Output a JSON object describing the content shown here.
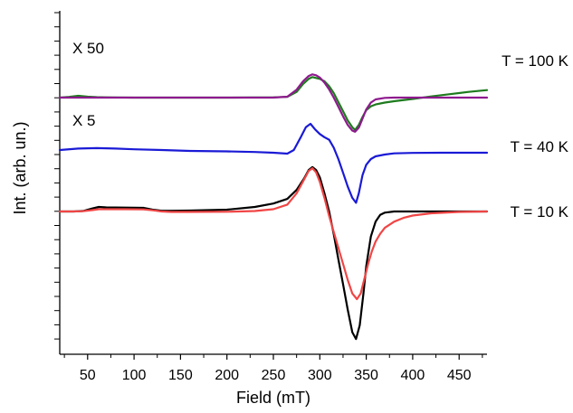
{
  "chart_data": {
    "type": "line",
    "xlabel": "Field (mT)",
    "ylabel": "Int. (arb. un.)",
    "xlim": [
      20,
      480
    ],
    "xticks": [
      50,
      100,
      150,
      200,
      250,
      300,
      350,
      400,
      450
    ],
    "y_tick_labels": "none",
    "grid": false,
    "legend": "none",
    "annotations": {
      "t100": "T = 100 K",
      "t40": "T = 40 K",
      "t10": "T = 10 K",
      "x50": "X 50",
      "x5": "X 5"
    },
    "series": [
      {
        "color": "#1e7b1e",
        "group": "T = 100 K",
        "x": [
          20,
          30,
          40,
          50,
          60,
          70,
          100,
          150,
          200,
          250,
          265,
          275,
          282,
          288,
          292,
          296,
          300,
          305,
          310,
          315,
          320,
          325,
          330,
          335,
          338,
          342,
          346,
          350,
          355,
          360,
          370,
          380,
          400,
          420,
          440,
          460,
          480
        ],
        "y": [
          0.0,
          0.03,
          0.08,
          0.04,
          0.02,
          0.01,
          0.0,
          0.0,
          0.0,
          0.01,
          0.03,
          0.25,
          0.6,
          0.82,
          0.9,
          0.86,
          0.82,
          0.72,
          0.5,
          0.2,
          -0.2,
          -0.6,
          -1.0,
          -1.3,
          -1.42,
          -1.2,
          -0.85,
          -0.55,
          -0.38,
          -0.3,
          -0.22,
          -0.16,
          -0.06,
          0.05,
          0.15,
          0.25,
          0.33
        ]
      },
      {
        "color": "#8e1a8e",
        "group": "T = 100 K",
        "x": [
          20,
          100,
          200,
          250,
          265,
          275,
          282,
          288,
          292,
          296,
          300,
          305,
          310,
          315,
          320,
          325,
          330,
          335,
          338,
          342,
          346,
          350,
          355,
          360,
          370,
          380,
          400,
          450,
          480
        ],
        "y": [
          0.0,
          0.0,
          0.0,
          0.0,
          0.04,
          0.35,
          0.72,
          0.95,
          1.02,
          0.98,
          0.88,
          0.66,
          0.36,
          0.0,
          -0.4,
          -0.82,
          -1.2,
          -1.45,
          -1.5,
          -1.32,
          -0.92,
          -0.52,
          -0.22,
          -0.08,
          -0.01,
          0.0,
          0.0,
          0.0,
          0.0
        ]
      },
      {
        "color": "#1a1ad6",
        "group": "T = 40 K",
        "x": [
          20,
          40,
          60,
          80,
          100,
          130,
          160,
          200,
          230,
          250,
          265,
          272,
          280,
          285,
          290,
          295,
          300,
          305,
          310,
          315,
          320,
          325,
          330,
          335,
          339,
          342,
          346,
          350,
          355,
          360,
          370,
          380,
          400,
          430,
          460,
          480
        ],
        "y": [
          0.1,
          0.16,
          0.18,
          0.16,
          0.13,
          0.1,
          0.06,
          0.04,
          0.01,
          -0.02,
          -0.06,
          0.1,
          0.7,
          1.1,
          1.25,
          1.0,
          0.8,
          0.66,
          0.55,
          0.2,
          -0.3,
          -0.9,
          -1.5,
          -2.0,
          -2.22,
          -1.8,
          -1.0,
          -0.55,
          -0.3,
          -0.18,
          -0.1,
          -0.05,
          -0.03,
          -0.02,
          -0.02,
          -0.02
        ]
      },
      {
        "color": "#000000",
        "group": "T = 10 K",
        "x": [
          20,
          35,
          45,
          55,
          62,
          70,
          90,
          110,
          120,
          130,
          140,
          160,
          200,
          230,
          250,
          265,
          275,
          283,
          288,
          292,
          296,
          300,
          305,
          310,
          315,
          320,
          325,
          330,
          335,
          339,
          343,
          347,
          350,
          355,
          360,
          365,
          370,
          380,
          400,
          450,
          480
        ],
        "y": [
          0.0,
          0.0,
          0.02,
          0.13,
          0.2,
          0.18,
          0.17,
          0.16,
          0.08,
          0.03,
          0.03,
          0.04,
          0.08,
          0.2,
          0.35,
          0.55,
          0.95,
          1.45,
          1.82,
          1.95,
          1.82,
          1.5,
          0.8,
          0.0,
          -1.0,
          -2.1,
          -3.2,
          -4.3,
          -5.3,
          -5.6,
          -5.0,
          -3.6,
          -2.4,
          -1.1,
          -0.45,
          -0.15,
          -0.05,
          0.0,
          0.0,
          0.0,
          0.0
        ]
      },
      {
        "color": "#f04545",
        "group": "T = 10 K",
        "x": [
          20,
          35,
          45,
          55,
          62,
          70,
          90,
          110,
          120,
          130,
          140,
          160,
          200,
          230,
          250,
          265,
          275,
          283,
          288,
          292,
          296,
          300,
          305,
          310,
          315,
          320,
          325,
          330,
          335,
          340,
          344,
          348,
          352,
          356,
          360,
          365,
          370,
          380,
          390,
          400,
          420,
          450,
          480
        ],
        "y": [
          0.0,
          0.0,
          0.01,
          0.06,
          0.1,
          0.1,
          0.1,
          0.09,
          0.05,
          0.0,
          -0.02,
          -0.02,
          -0.01,
          0.02,
          0.1,
          0.3,
          0.8,
          1.4,
          1.78,
          1.9,
          1.72,
          1.3,
          0.6,
          -0.2,
          -0.9,
          -1.6,
          -2.3,
          -3.0,
          -3.6,
          -3.85,
          -3.6,
          -2.95,
          -2.3,
          -1.75,
          -1.32,
          -0.98,
          -0.72,
          -0.45,
          -0.28,
          -0.18,
          -0.08,
          -0.02,
          0.0
        ]
      }
    ],
    "offsets": {
      "T = 100 K": 5.0,
      "T = 40 K": 2.6,
      "T = 10 K": 0.0
    }
  }
}
